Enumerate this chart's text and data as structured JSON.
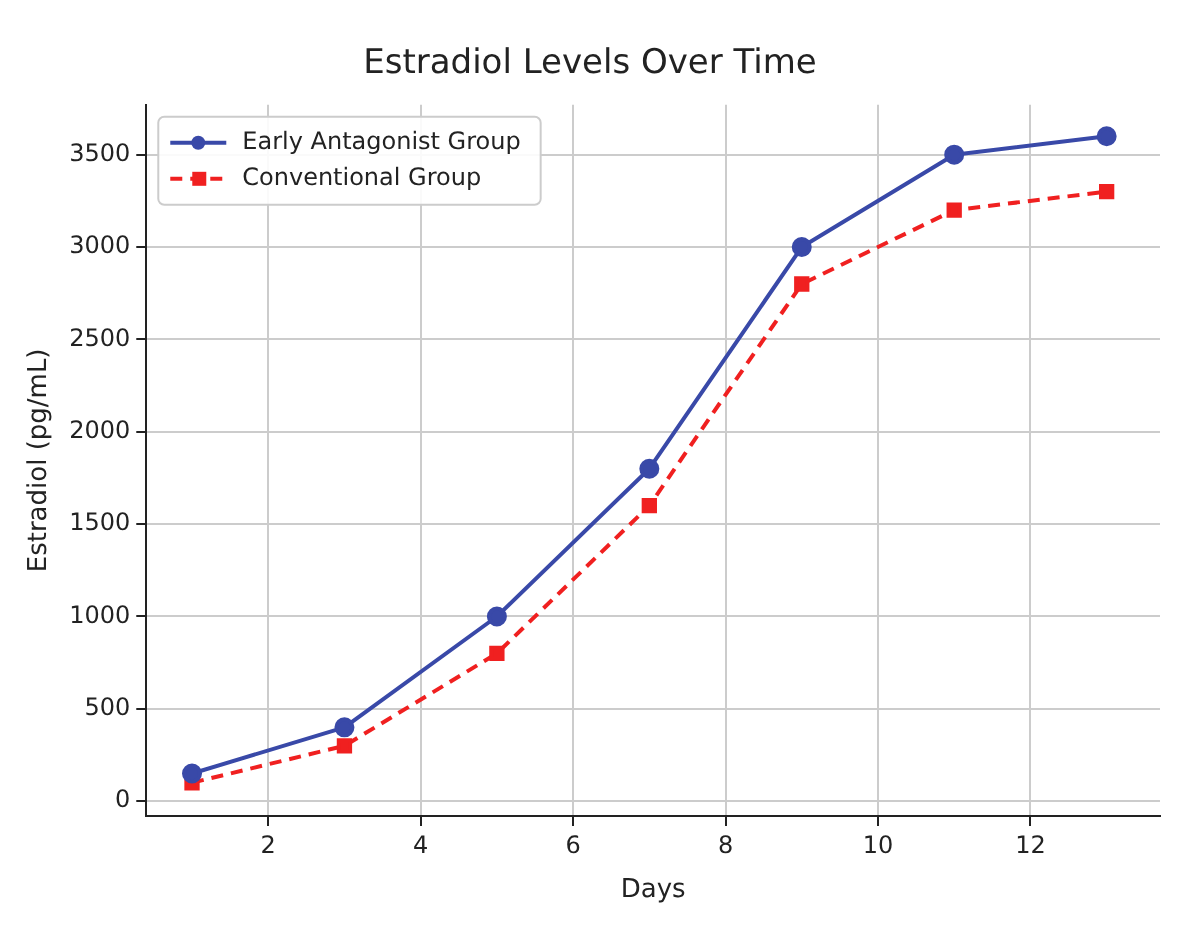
{
  "chart_data": {
    "type": "line",
    "title": "Estradiol Levels Over Time",
    "xlabel": "Days",
    "ylabel": "Estradiol (pg/mL)",
    "x": [
      1,
      3,
      5,
      7,
      9,
      11,
      13
    ],
    "series": [
      {
        "name": "Early Antagonist Group",
        "color": "#3949a8",
        "values": [
          150,
          400,
          1000,
          1800,
          3000,
          3500,
          3600
        ],
        "marker": "circle",
        "line_style": "solid"
      },
      {
        "name": "Conventional Group",
        "color": "#f02020",
        "values": [
          100,
          300,
          800,
          1600,
          2800,
          3200,
          3300
        ],
        "marker": "square",
        "line_style": "dashed"
      }
    ],
    "xlim": [
      0.4,
      13.7
    ],
    "xticks": [
      2,
      4,
      6,
      8,
      10,
      12
    ],
    "ylim": [
      -80,
      3770
    ],
    "yticks": [
      0,
      500,
      1000,
      1500,
      2000,
      2500,
      3000,
      3500
    ],
    "grid": true,
    "legend": "top left"
  }
}
